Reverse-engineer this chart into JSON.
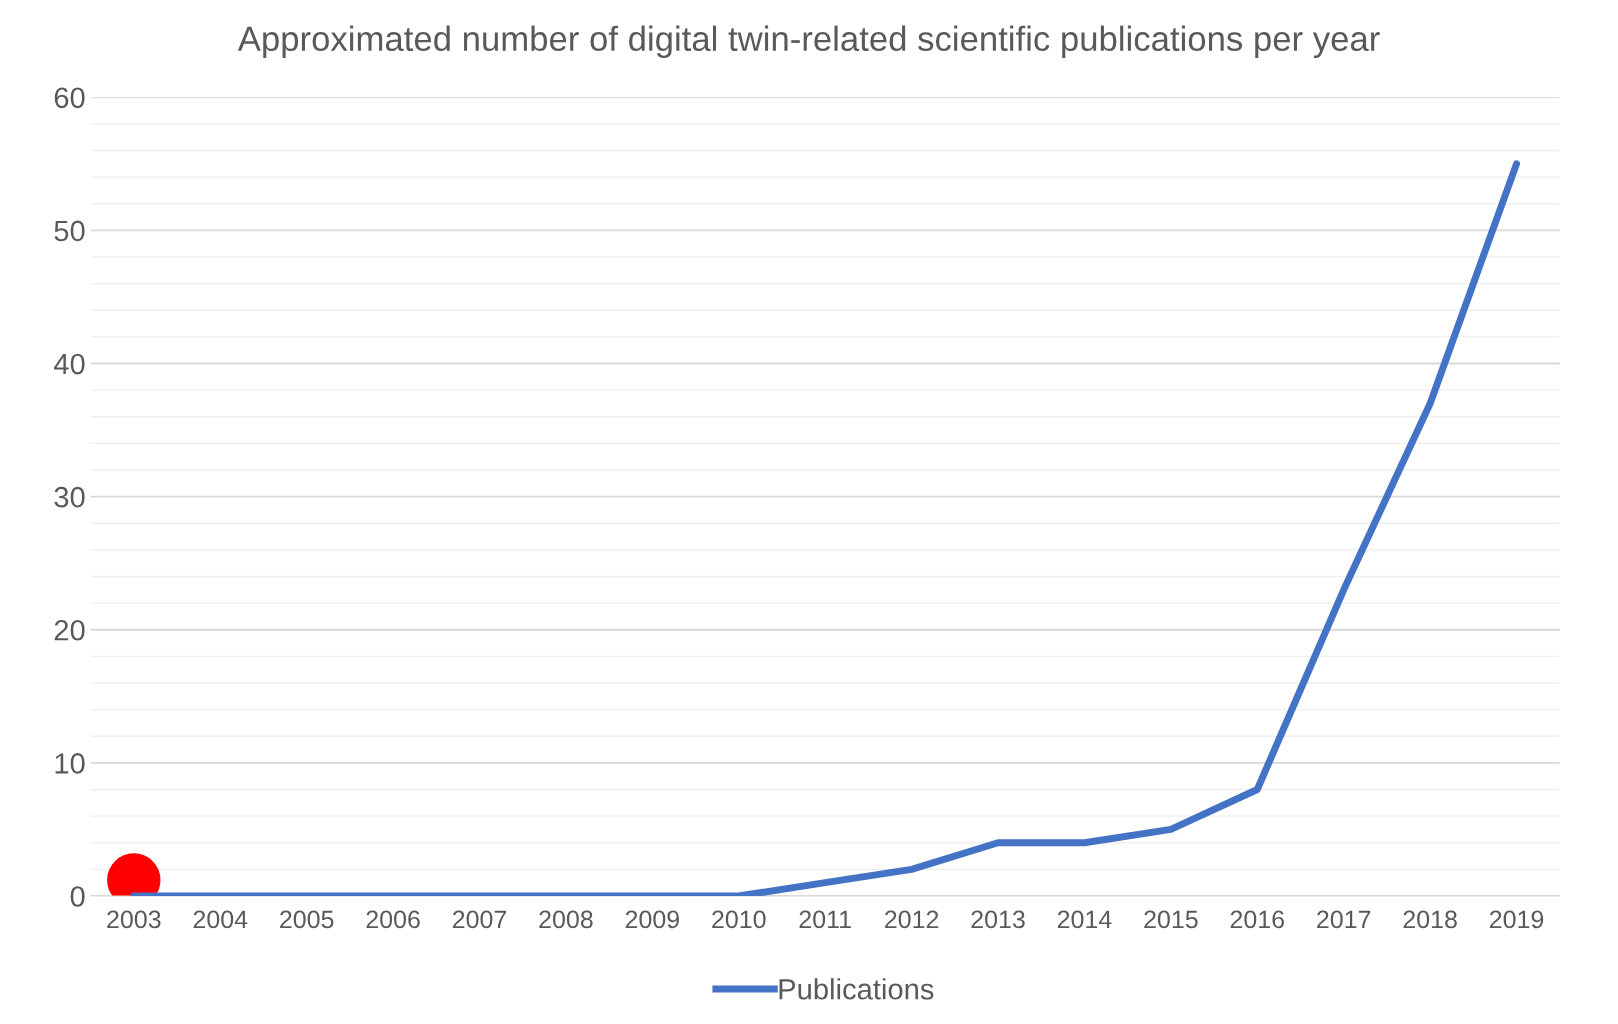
{
  "chart_data": {
    "type": "line",
    "title": "Approximated number of digital twin-related scientific publications per year",
    "categories": [
      "2003",
      "2004",
      "2005",
      "2006",
      "2007",
      "2008",
      "2009",
      "2010",
      "2011",
      "2012",
      "2013",
      "2014",
      "2015",
      "2016",
      "2017",
      "2018",
      "2019"
    ],
    "series": [
      {
        "name": "Publications",
        "color": "#4472c4",
        "values": [
          0,
          0,
          0,
          0,
          0,
          0,
          0,
          0,
          1,
          2,
          4,
          4,
          5,
          8,
          23,
          37,
          55
        ]
      },
      {
        "type": "scatter",
        "color": "#ff0000",
        "marker": "circle",
        "values": [
          1.2,
          null,
          null,
          null,
          null,
          null,
          null,
          null,
          null,
          null,
          null,
          null,
          null,
          null,
          null,
          null,
          null
        ]
      }
    ],
    "ylim": [
      0,
      60
    ],
    "yticks": [
      0,
      10,
      20,
      30,
      40,
      50,
      60
    ],
    "grid": "y",
    "legend": "bottom",
    "marker": "none",
    "line_style": "solid"
  }
}
